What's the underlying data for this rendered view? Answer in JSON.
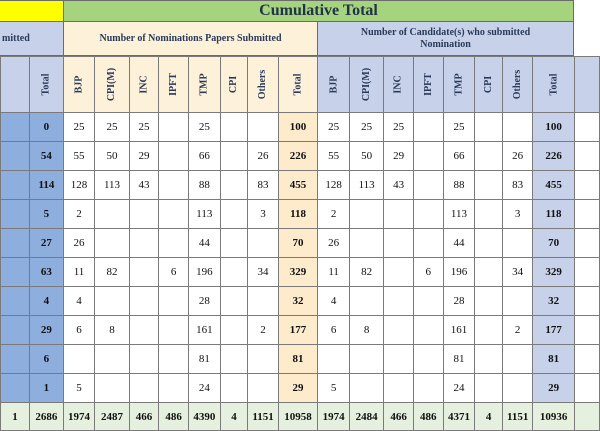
{
  "header": {
    "title": "Cumulative Total",
    "left_cut": "mitted",
    "nominations_group": "Number of Nominations Papers Submitted",
    "candidates_group": "Number of Candidate(s) who submitted Nomination"
  },
  "columns": {
    "left": [
      "Total"
    ],
    "nominations": [
      "BJP",
      "CPI(M)",
      "INC",
      "IPFT",
      "TMP",
      "CPI",
      "Others",
      "Total"
    ],
    "candidates": [
      "BJP",
      "CPI(M)",
      "INC",
      "IPFT",
      "TMP",
      "CPI",
      "Others",
      "Total"
    ]
  },
  "rows": [
    {
      "left": "0",
      "nom": [
        "25",
        "25",
        "25",
        "",
        "25",
        "",
        "",
        "100"
      ],
      "cand": [
        "25",
        "25",
        "25",
        "",
        "25",
        "",
        "",
        "100"
      ]
    },
    {
      "left": "54",
      "nom": [
        "55",
        "50",
        "29",
        "",
        "66",
        "",
        "26",
        "226"
      ],
      "cand": [
        "55",
        "50",
        "29",
        "",
        "66",
        "",
        "26",
        "226"
      ]
    },
    {
      "left": "114",
      "nom": [
        "128",
        "113",
        "43",
        "",
        "88",
        "",
        "83",
        "455"
      ],
      "cand": [
        "128",
        "113",
        "43",
        "",
        "88",
        "",
        "83",
        "455"
      ]
    },
    {
      "left": "5",
      "nom": [
        "2",
        "",
        "",
        "",
        "113",
        "",
        "3",
        "118"
      ],
      "cand": [
        "2",
        "",
        "",
        "",
        "113",
        "",
        "3",
        "118"
      ]
    },
    {
      "left": "27",
      "nom": [
        "26",
        "",
        "",
        "",
        "44",
        "",
        "",
        "70"
      ],
      "cand": [
        "26",
        "",
        "",
        "",
        "44",
        "",
        "",
        "70"
      ]
    },
    {
      "left": "63",
      "nom": [
        "11",
        "82",
        "",
        "6",
        "196",
        "",
        "34",
        "329"
      ],
      "cand": [
        "11",
        "82",
        "",
        "6",
        "196",
        "",
        "34",
        "329"
      ]
    },
    {
      "left": "4",
      "nom": [
        "4",
        "",
        "",
        "",
        "28",
        "",
        "",
        "32"
      ],
      "cand": [
        "4",
        "",
        "",
        "",
        "28",
        "",
        "",
        "32"
      ]
    },
    {
      "left": "29",
      "nom": [
        "6",
        "8",
        "",
        "",
        "161",
        "",
        "2",
        "177"
      ],
      "cand": [
        "6",
        "8",
        "",
        "",
        "161",
        "",
        "2",
        "177"
      ]
    },
    {
      "left": "6",
      "nom": [
        "",
        "",
        "",
        "",
        "81",
        "",
        "",
        "81"
      ],
      "cand": [
        "",
        "",
        "",
        "",
        "81",
        "",
        "",
        "81"
      ]
    },
    {
      "left": "1",
      "nom": [
        "5",
        "",
        "",
        "",
        "24",
        "",
        "",
        "29"
      ],
      "cand": [
        "5",
        "",
        "",
        "",
        "24",
        "",
        "",
        "29"
      ]
    }
  ],
  "total_row": {
    "left_cut": "1",
    "left": "2686",
    "nom": [
      "1974",
      "2487",
      "466",
      "486",
      "4390",
      "4",
      "1151",
      "10958"
    ],
    "cand": [
      "1974",
      "2484",
      "466",
      "486",
      "4371",
      "4",
      "1151",
      "10936"
    ]
  },
  "colors": {
    "title_band": "#a6d37e",
    "yellow_corner": "#ffff00",
    "left_blue": "#8eaede",
    "header_peach": "#fdf1d9",
    "header_blue": "#c7d2ea",
    "total_row": "#e6f0df"
  }
}
